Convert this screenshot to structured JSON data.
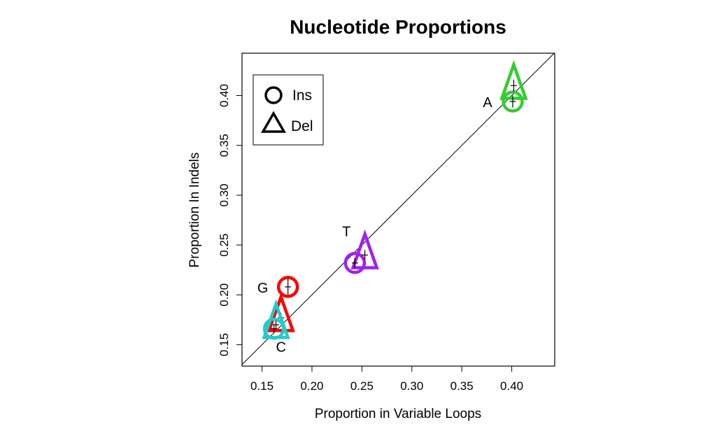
{
  "chart_data": {
    "type": "scatter",
    "title": "Nucleotide Proportions",
    "xlabel": "Proportion in Variable Loops",
    "ylabel": "Proportion In Indels",
    "xlim": [
      0.13,
      0.443
    ],
    "ylim": [
      0.1285,
      0.4425
    ],
    "xticks": [
      0.15,
      0.2,
      0.25,
      0.3,
      0.35,
      0.4
    ],
    "xtick_labels": [
      "0.15",
      "0.20",
      "0.25",
      "0.30",
      "0.35",
      "0.40"
    ],
    "yticks": [
      0.15,
      0.2,
      0.25,
      0.3,
      0.35,
      0.4
    ],
    "ytick_labels": [
      "0.15",
      "0.20",
      "0.25",
      "0.30",
      "0.35",
      "0.40"
    ],
    "reference_line": "y = x",
    "legend": {
      "position": "top-left",
      "entries": [
        {
          "label": "Ins",
          "marker": "circle"
        },
        {
          "label": "Del",
          "marker": "triangle"
        }
      ]
    },
    "nucleotides": [
      {
        "label": "A",
        "color": "#33cc33",
        "label_side": "left",
        "ins": {
          "x": 0.401,
          "y": 0.394,
          "xerr": 0.001,
          "yerr": 0.006
        },
        "del": {
          "x": 0.402,
          "y": 0.41,
          "xerr": 0.001,
          "yerr": 0.006
        }
      },
      {
        "label": "T",
        "color": "#a020f0",
        "label_side": "top-left",
        "ins": {
          "x": 0.243,
          "y": 0.232,
          "xerr": 0.001,
          "yerr": 0.005
        },
        "del": {
          "x": 0.253,
          "y": 0.24,
          "xerr": 0.001,
          "yerr": 0.005
        }
      },
      {
        "label": "G",
        "color": "#ff0000",
        "label_side": "left",
        "ins": {
          "x": 0.176,
          "y": 0.208,
          "xerr": 0.001,
          "yerr": 0.008
        },
        "del": {
          "x": 0.169,
          "y": 0.177,
          "xerr": 0.001,
          "yerr": 0.005
        }
      },
      {
        "label": "C",
        "color": "#22cccc",
        "label_side": "bottom",
        "ins": {
          "x": 0.162,
          "y": 0.166,
          "xerr": 0.001,
          "yerr": 0.004
        },
        "del": {
          "x": 0.164,
          "y": 0.17,
          "xerr": 0.001,
          "yerr": 0.004
        }
      }
    ],
    "grid": false
  }
}
